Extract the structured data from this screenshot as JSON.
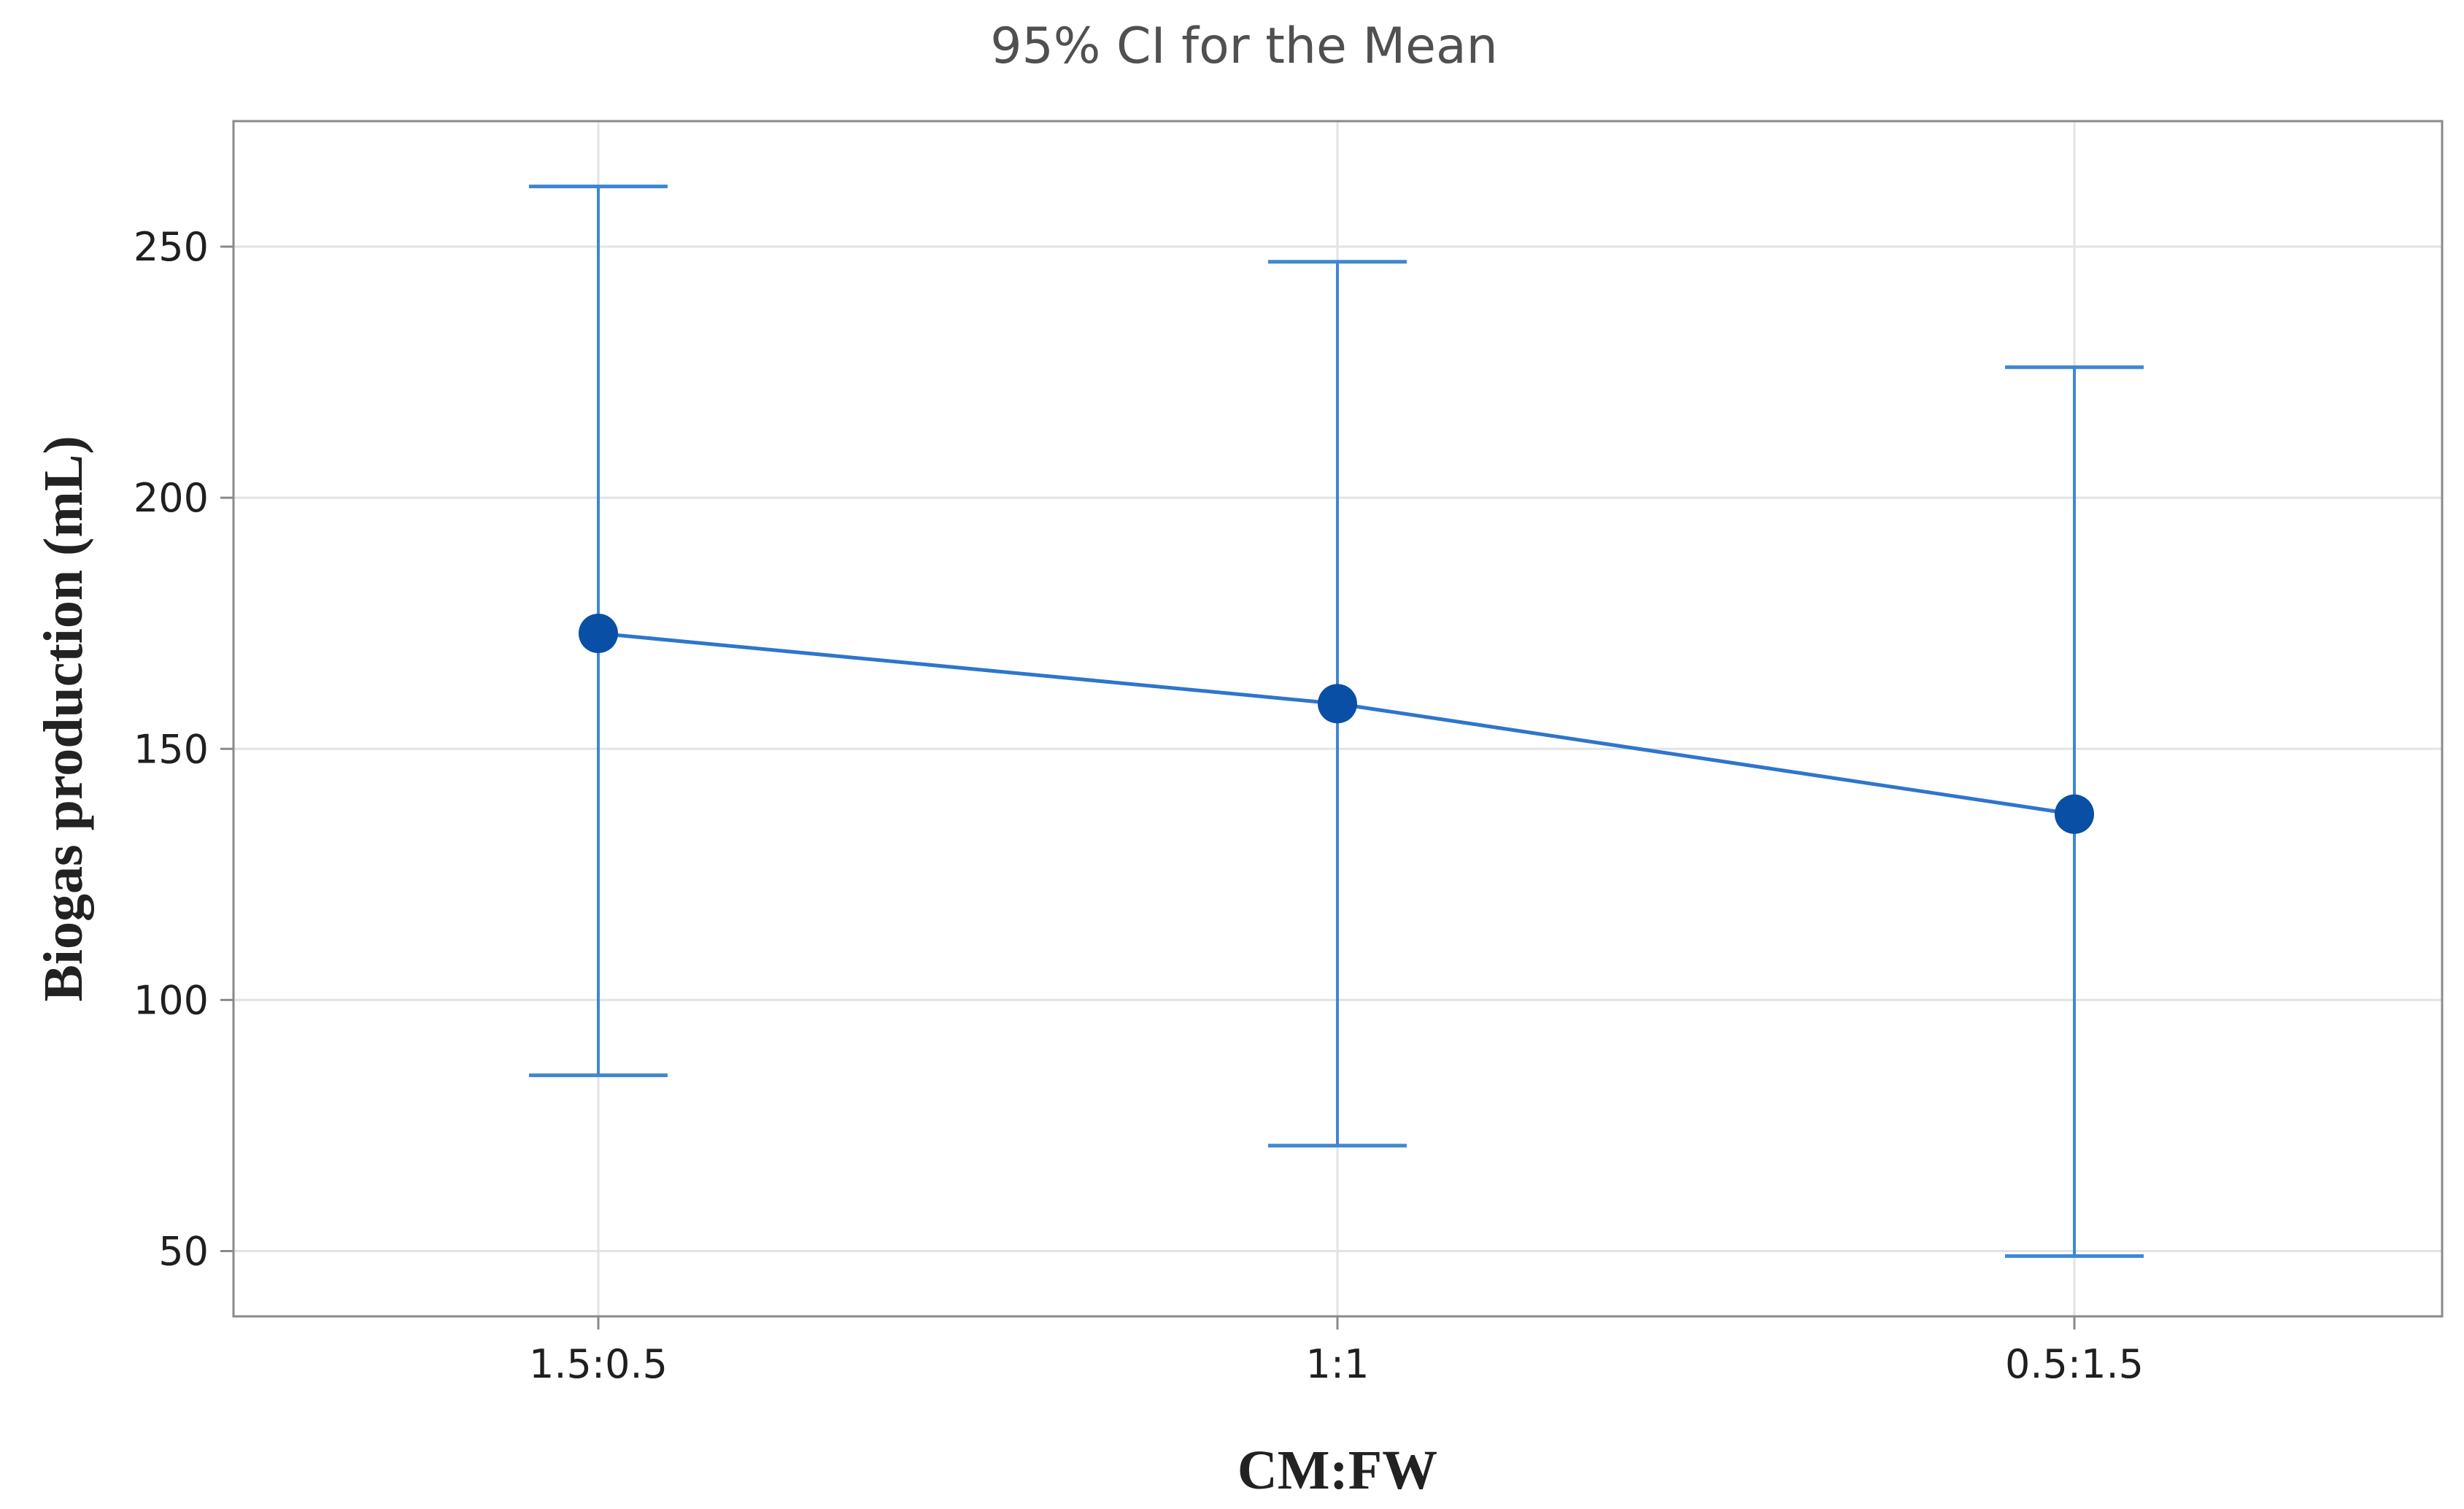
{
  "chart_data": {
    "type": "line",
    "subtitle": "95% CI for the Mean",
    "xlabel": "CM:FW",
    "ylabel": "Biogas production (mL)",
    "categories": [
      "1.5:0.5",
      "1:1",
      "0.5:1.5"
    ],
    "series": [
      {
        "values": [
          173,
          159,
          137
        ],
        "ci_lower": [
          85,
          71,
          49
        ],
        "ci_upper": [
          262,
          247,
          226
        ]
      }
    ],
    "yticks": [
      50,
      100,
      150,
      200,
      250
    ],
    "ylim": [
      37,
      275
    ],
    "grid": true,
    "legend": "none",
    "colors": {
      "line": "#2e75cc",
      "marker": "#0a4fa6",
      "errorbar": "#3f86d6",
      "grid": "#e3e3e3",
      "frame": "#8a8a8a"
    }
  }
}
